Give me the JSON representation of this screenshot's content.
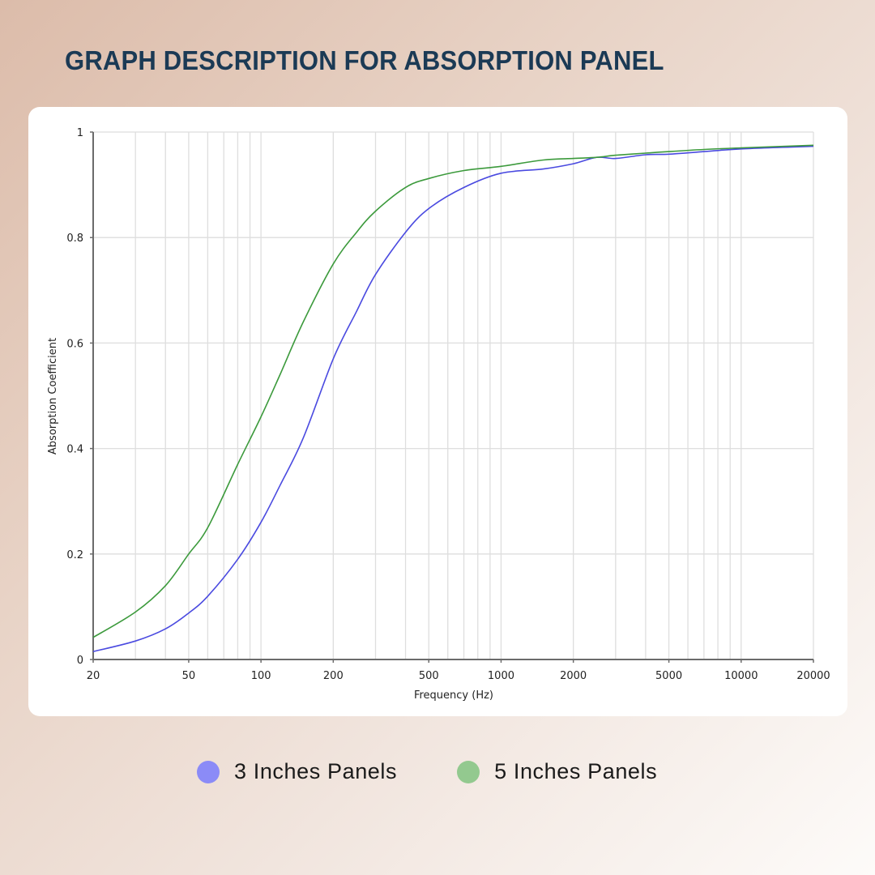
{
  "page": {
    "title": "GRAPH DESCRIPTION FOR ABSORPTION PANEL"
  },
  "legend": [
    {
      "label": "3 Inches Panels",
      "color": "#8b8bf7"
    },
    {
      "label": "5 Inches Panels",
      "color": "#93c98f"
    }
  ],
  "chart_data": {
    "type": "line",
    "title": "GRAPH DESCRIPTION FOR ABSORPTION PANEL",
    "xlabel": "Frequency (Hz)",
    "ylabel": "Absorption Coefficient",
    "xscale": "log",
    "xlim": [
      20,
      20000
    ],
    "ylim": [
      0,
      1
    ],
    "x_ticks": [
      20,
      50,
      100,
      200,
      500,
      1000,
      2000,
      5000,
      10000,
      20000
    ],
    "x_tick_labels": [
      "20",
      "50",
      "100",
      "200",
      "500",
      "1000",
      "2000",
      "5000",
      "10000",
      "20000"
    ],
    "y_ticks": [
      0,
      0.2,
      0.4,
      0.6,
      0.8,
      1
    ],
    "y_tick_labels": [
      "0",
      "0.2",
      "0.4",
      "0.6",
      "0.8",
      "1"
    ],
    "grid": true,
    "legend_position": "bottom",
    "series": [
      {
        "name": "3 Inches Panels",
        "line_color": "#4a4ae0",
        "x": [
          20,
          30,
          40,
          50,
          60,
          80,
          100,
          120,
          150,
          200,
          250,
          300,
          400,
          500,
          700,
          1000,
          1500,
          2000,
          2500,
          3000,
          4000,
          5000,
          7000,
          10000,
          20000
        ],
        "values": [
          0.015,
          0.035,
          0.058,
          0.088,
          0.12,
          0.19,
          0.26,
          0.33,
          0.42,
          0.57,
          0.66,
          0.73,
          0.81,
          0.855,
          0.895,
          0.922,
          0.93,
          0.94,
          0.952,
          0.95,
          0.957,
          0.958,
          0.963,
          0.968,
          0.973
        ]
      },
      {
        "name": "5 Inches Panels",
        "line_color": "#3c9a3c",
        "x": [
          20,
          30,
          40,
          50,
          60,
          80,
          100,
          120,
          150,
          200,
          250,
          300,
          400,
          500,
          700,
          1000,
          1500,
          2000,
          2500,
          3000,
          4000,
          5000,
          7000,
          10000,
          20000
        ],
        "values": [
          0.042,
          0.09,
          0.14,
          0.2,
          0.25,
          0.37,
          0.46,
          0.54,
          0.64,
          0.75,
          0.81,
          0.85,
          0.895,
          0.912,
          0.927,
          0.935,
          0.947,
          0.95,
          0.952,
          0.956,
          0.96,
          0.963,
          0.967,
          0.97,
          0.975
        ]
      }
    ]
  }
}
